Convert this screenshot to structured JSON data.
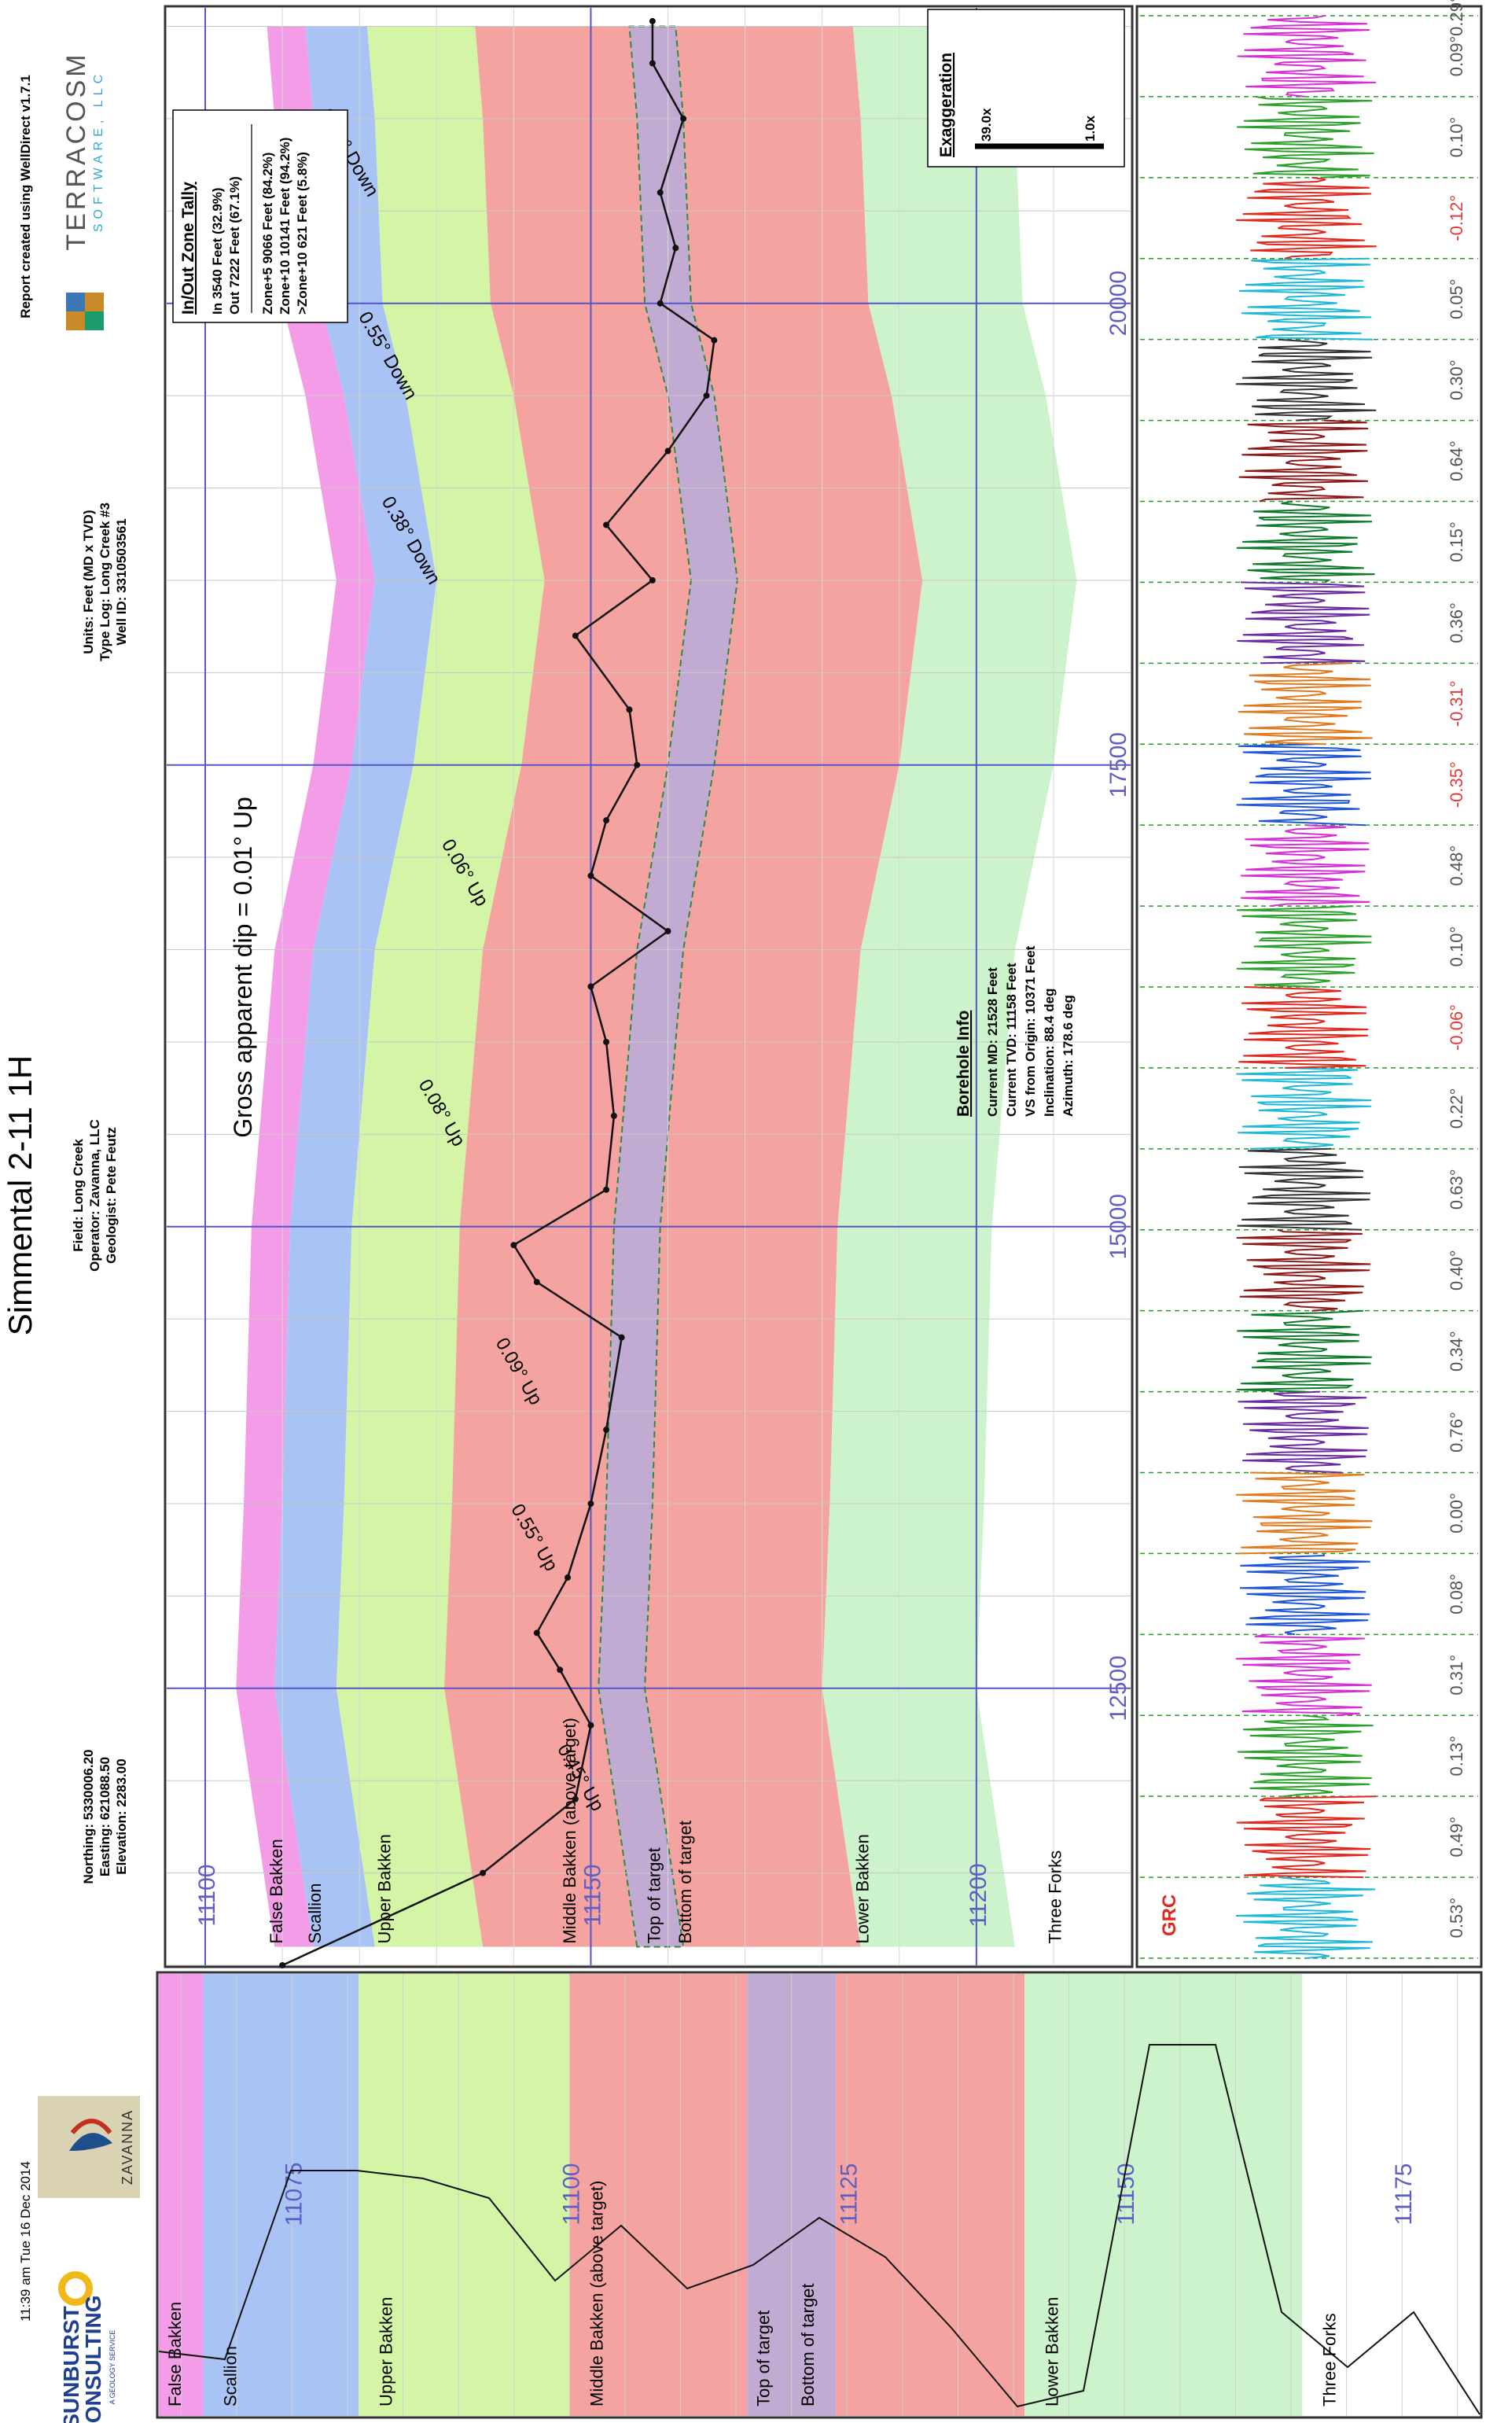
{
  "header": {
    "title": "Simmental 2-11 1H",
    "timestamp": "11:39 am  Tue 16 Dec 2014",
    "created_with": "Report created using WellDirect v1.7.1",
    "coords": [
      "Northing: 5330006.20",
      "Easting: 621088.50",
      "Elevation: 2283.00"
    ],
    "field_info": [
      "Field: Long Creek",
      "Operator: Zavanna, LLC",
      "Geologist: Pete Feutz"
    ],
    "units_info": [
      "Units: Feet (MD x TVD)",
      "Type Log: Long Creek #3",
      "Well ID: 3310503561"
    ]
  },
  "logos": {
    "sunburst": [
      "SUNBURST",
      "CONSULTING",
      "A GEOLOGY SERVICE"
    ],
    "zavanna": "ZAVANNA",
    "terracosm": [
      "TERRACOSM",
      "SOFTWARE, LLC"
    ]
  },
  "tally": {
    "title": "In/Out Zone Tally",
    "lines": [
      "In    3540 Feet (32.9%)",
      "Out  7222 Feet (67.1%)"
    ],
    "zone_lines": [
      "Zone+5      9066 Feet (84.2%)",
      "Zone+10   10141 Feet (94.2%)",
      ">Zone+10  621 Feet (5.8%)"
    ]
  },
  "exaggeration": {
    "title": "Exaggeration",
    "value": "39.0x",
    "unit": "1.0x"
  },
  "borehole": {
    "title": "Borehole Info",
    "lines": [
      "Current MD: 21528 Feet",
      "Current TVD: 11158 Feet",
      "VS from Origin: 10371 Feet",
      "Inclination: 88.4 deg",
      "Azimuth: 178.6 deg"
    ]
  },
  "gross_dip": "Gross apparent dip = 0.01° Up",
  "colors": {
    "false_bakken": "#f39ce8",
    "scallion": "#a9c3f5",
    "upper_bakken": "#d4f5a6",
    "middle_bakken": "#f5a3a0",
    "target": "#c2abd3",
    "lower_bakken": "#cdf3cc",
    "grid_label": "#5f5fc3",
    "gr_label": "#e0281e",
    "dip_red": "#e23a3a",
    "dip_gray": "#555555"
  },
  "chart_data": [
    {
      "type": "area",
      "name": "cross-section",
      "xlabel": "",
      "ylabel": "",
      "xlim": [
        11000,
        21600
      ],
      "ylim": [
        11095,
        11220
      ],
      "x_ticks": [
        12500,
        15000,
        17500,
        20000
      ],
      "y_ticks": [
        11100,
        11150,
        11200
      ],
      "x_tick_labels": [
        "12500",
        "15000",
        "17500",
        "20000"
      ],
      "y_tick_labels": [
        "11100",
        "11150",
        "11200"
      ],
      "zone_labels": [
        "False Bakken",
        "Scallion",
        "Upper Bakken",
        "Middle Bakken (above target)",
        "Top of target",
        "Bottom of target",
        "Lower Bakken",
        "Three Forks"
      ],
      "formation_tops": {
        "md": [
          11100,
          12500,
          13500,
          15000,
          16500,
          17500,
          18500,
          19500,
          20000,
          21000,
          21500
        ],
        "scallion_top": [
          11114,
          11109,
          11110,
          11111,
          11114,
          11119,
          11122,
          11118,
          11115,
          11114,
          11113
        ],
        "upper_bakken_top": [
          11122,
          11117,
          11118,
          11119,
          11122,
          11127,
          11130,
          11126,
          11123,
          11122,
          11121
        ],
        "middle_bakken_top": [
          11136,
          11131,
          11132,
          11133,
          11136,
          11141,
          11144,
          11140,
          11137,
          11136,
          11135
        ],
        "top_of_target": [
          11156,
          11151,
          11152,
          11153,
          11156,
          11160,
          11163,
          11160,
          11157,
          11156,
          11155
        ],
        "bottom_of_target": [
          11162,
          11157,
          11158,
          11159,
          11162,
          11166,
          11169,
          11166,
          11163,
          11162,
          11161
        ],
        "lower_bakken_top": [
          11185,
          11180,
          11181,
          11182,
          11185,
          11190,
          11193,
          11189,
          11186,
          11185,
          11184
        ],
        "three_forks_top": [
          11205,
          11200,
          11201,
          11202,
          11205,
          11210,
          11213,
          11209,
          11206,
          11205,
          11204
        ]
      },
      "wellbore": {
        "md": [
          11000,
          11500,
          11900,
          12300,
          12600,
          12800,
          13100,
          13500,
          13900,
          14400,
          14700,
          14900,
          15200,
          15600,
          16000,
          16300,
          16600,
          16900,
          17200,
          17500,
          17800,
          18200,
          18500,
          18800,
          19200,
          19500,
          19800,
          20000,
          20300,
          20600,
          21000,
          21300,
          21528
        ],
        "tvd": [
          11110,
          11136,
          11148,
          11150,
          11146,
          11143,
          11147,
          11150,
          11152,
          11154,
          11143,
          11140,
          11152,
          11153,
          11152,
          11150,
          11160,
          11150,
          11152,
          11156,
          11155,
          11148,
          11158,
          11152,
          11160,
          11165,
          11166,
          11159,
          11161,
          11159,
          11162,
          11158,
          11158
        ]
      },
      "dip_annotations": [
        "0.16° Down",
        "0.55° Down",
        "0.38° Down",
        "0.06° Up",
        "0.08° Up",
        "0.09° Up",
        "0.55° Up",
        "0.45° Up"
      ]
    },
    {
      "type": "line",
      "name": "gamma-strip",
      "series_label": "GRC",
      "dip_values": [
        "0.53°",
        "0.49°",
        "0.13°",
        "0.31°",
        "0.08°",
        "0.00°",
        "0.76°",
        "0.34°",
        "0.40°",
        "0.63°",
        "0.22°",
        "-0.06°",
        "0.10°",
        "0.48°",
        "-0.35°",
        "-0.31°",
        "0.36°",
        "0.15°",
        "0.64°",
        "0.30°",
        "0.05°",
        "-0.12°",
        "0.10°",
        "0.09°",
        "0.29°"
      ]
    },
    {
      "type": "line",
      "name": "type-log",
      "zone_labels": [
        "False Bakken",
        "Scallion",
        "Upper Bakken",
        "Middle Bakken (above target)",
        "Top of target",
        "Bottom of target",
        "Lower Bakken",
        "Three Forks"
      ],
      "tvd_ticks": [
        11075,
        11100,
        11125,
        11150,
        11175
      ],
      "tvd_tick_labels": [
        "11075",
        "11100",
        "11125",
        "11150",
        "11175"
      ],
      "tvd_range": [
        11063,
        11182
      ]
    }
  ]
}
